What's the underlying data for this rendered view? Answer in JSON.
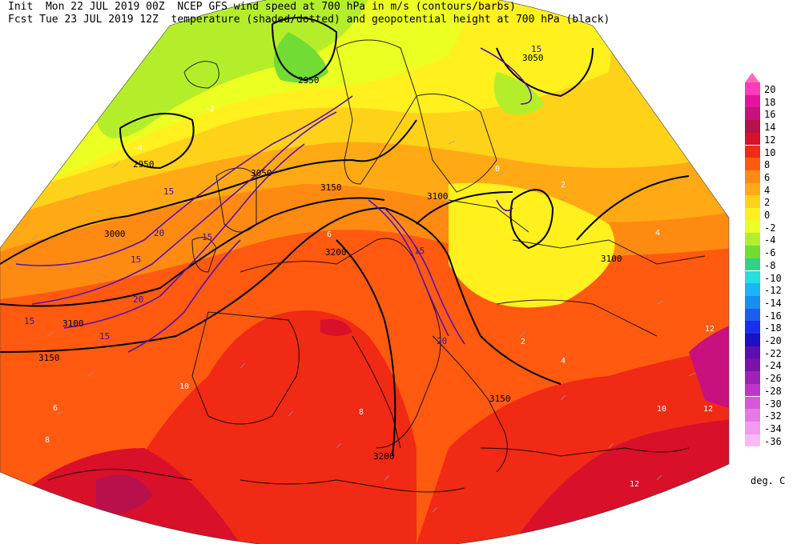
{
  "header": {
    "line1": "Init  Mon 22 JUL 2019 00Z  NCEP GFS wind speed at 700 hPa in m/s (contours/barbs)",
    "line2": "Fcst Tue 23 JUL 2019 12Z  temperature (shaded/dotted) and geopotential height at 700 hPa (black)"
  },
  "legend": {
    "units": "deg. C",
    "levels": [
      {
        "label": "20",
        "color": "#ff3bb8"
      },
      {
        "label": "18",
        "color": "#e5149c"
      },
      {
        "label": "16",
        "color": "#c8107e"
      },
      {
        "label": "14",
        "color": "#b8104c"
      },
      {
        "label": "12",
        "color": "#d8102a"
      },
      {
        "label": "10",
        "color": "#f02a14"
      },
      {
        "label": "8",
        "color": "#ff5a10"
      },
      {
        "label": "6",
        "color": "#ff8a12"
      },
      {
        "label": "4",
        "color": "#ffaa14"
      },
      {
        "label": "2",
        "color": "#ffd21a"
      },
      {
        "label": "0",
        "color": "#fff01e"
      },
      {
        "label": "-2",
        "color": "#ecff22"
      },
      {
        "label": "-4",
        "color": "#b4ee2a"
      },
      {
        "label": "-6",
        "color": "#70dc34"
      },
      {
        "label": "-8",
        "color": "#34d08a"
      },
      {
        "label": "-10",
        "color": "#22e0dc"
      },
      {
        "label": "-12",
        "color": "#1ab6f4"
      },
      {
        "label": "-14",
        "color": "#1a8ef0"
      },
      {
        "label": "-16",
        "color": "#1a5ef0"
      },
      {
        "label": "-18",
        "color": "#1a2ef0"
      },
      {
        "label": "-20",
        "color": "#1a10c8"
      },
      {
        "label": "-22",
        "color": "#5a10b0"
      },
      {
        "label": "-24",
        "color": "#7a14a8"
      },
      {
        "label": "-26",
        "color": "#9c24b4"
      },
      {
        "label": "-28",
        "color": "#bc38c8"
      },
      {
        "label": "-30",
        "color": "#d65ad8"
      },
      {
        "label": "-32",
        "color": "#e67ae4"
      },
      {
        "label": "-34",
        "color": "#f29af0"
      },
      {
        "label": "-36",
        "color": "#f8baf6"
      }
    ]
  },
  "map": {
    "height_labels": [
      "2950",
      "3000",
      "3050",
      "3100",
      "3150",
      "3200",
      "3050",
      "3100",
      "3100",
      "3150",
      "3200",
      "2950",
      "3100",
      "3150"
    ],
    "wind_labels": [
      "15",
      "15",
      "20",
      "20",
      "15",
      "15",
      "15",
      "15",
      "15",
      "20"
    ],
    "temp_labels": [
      "-4",
      "-2",
      "0",
      "2",
      "4",
      "6",
      "8",
      "10",
      "12",
      "2",
      "4",
      "10",
      "12",
      "12",
      "6",
      "8"
    ]
  }
}
